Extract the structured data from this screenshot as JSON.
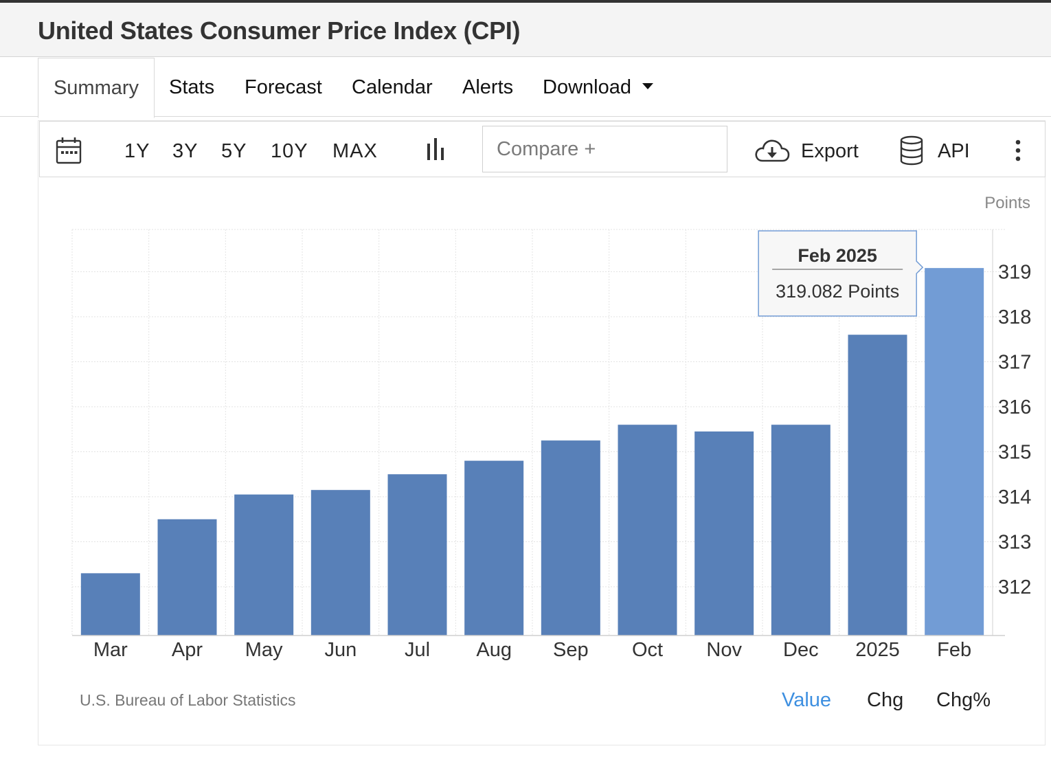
{
  "header": {
    "title": "United States Consumer Price Index (CPI)"
  },
  "tabs": [
    {
      "label": "Summary",
      "active": true
    },
    {
      "label": "Stats"
    },
    {
      "label": "Forecast"
    },
    {
      "label": "Calendar"
    },
    {
      "label": "Alerts"
    },
    {
      "label": "Download",
      "has_dropdown": true
    }
  ],
  "toolbar": {
    "calendar_icon": "calendar-icon",
    "ranges": [
      "1Y",
      "3Y",
      "5Y",
      "10Y",
      "MAX"
    ],
    "chart_type_icon": "bar-chart-icon",
    "compare_placeholder": "Compare +",
    "export_label": "Export",
    "export_icon": "cloud-download-icon",
    "api_label": "API",
    "api_icon": "database-icon",
    "more_icon": "more-vertical-icon"
  },
  "chart_data": {
    "type": "bar",
    "unit_label": "Points",
    "categories": [
      "Mar",
      "Apr",
      "May",
      "Jun",
      "Jul",
      "Aug",
      "Sep",
      "Oct",
      "Nov",
      "Dec",
      "2025",
      "Feb"
    ],
    "values": [
      312.3,
      313.5,
      314.05,
      314.15,
      314.5,
      314.8,
      315.25,
      315.6,
      315.45,
      315.6,
      317.6,
      319.082
    ],
    "ylim": [
      311.0,
      320.0
    ],
    "yticks": [
      312,
      313,
      314,
      315,
      316,
      317,
      318,
      319
    ],
    "y_axis_side": "right",
    "grid": true,
    "bar_color": "#5880b8",
    "highlight_color": "#729cd5",
    "highlight_index": 11,
    "tooltip": {
      "title": "Feb 2025",
      "value_text": "319.082 Points"
    }
  },
  "footer": {
    "source": "U.S. Bureau of Labor Statistics",
    "tabs": [
      {
        "label": "Value",
        "active": true
      },
      {
        "label": "Chg"
      },
      {
        "label": "Chg%"
      }
    ]
  },
  "colors": {
    "accent": "#3d8fe0",
    "bar": "#5880b8",
    "bar_highlight": "#729cd5"
  }
}
